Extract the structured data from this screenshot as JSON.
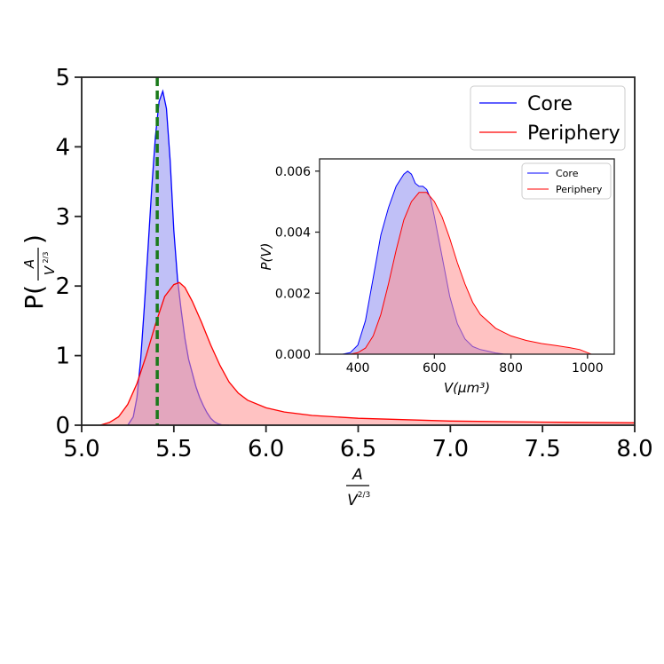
{
  "chart_data": [
    {
      "type": "area",
      "xlabel_num": "A",
      "xlabel_den": "V",
      "xlabel_exp": "2/3",
      "ylabel_prefix": "P(",
      "ylabel_suffix": ")",
      "xlim": [
        5.0,
        8.0
      ],
      "ylim": [
        0,
        5
      ],
      "x_ticks": [
        5.0,
        5.5,
        6.0,
        6.5,
        7.0,
        7.5,
        8.0
      ],
      "x_tick_labels": [
        "5.0",
        "5.5",
        "6.0",
        "6.5",
        "7.0",
        "7.5",
        "8.0"
      ],
      "y_ticks": [
        0,
        1,
        2,
        3,
        4,
        5
      ],
      "y_tick_labels": [
        "0",
        "1",
        "2",
        "3",
        "4",
        "5"
      ],
      "grid": false,
      "legend_position": "top-right",
      "reference_line": {
        "x": 5.41,
        "color": "#1a7a1a",
        "style": "dashed"
      },
      "series": [
        {
          "name": "Core",
          "color": "#0000ff",
          "fill": "#8c8cf0",
          "x": [
            5.25,
            5.28,
            5.3,
            5.32,
            5.34,
            5.36,
            5.38,
            5.4,
            5.42,
            5.44,
            5.46,
            5.48,
            5.5,
            5.52,
            5.54,
            5.56,
            5.58,
            5.6,
            5.62,
            5.64,
            5.66,
            5.68,
            5.7,
            5.72,
            5.74,
            5.76,
            5.8
          ],
          "y": [
            0.0,
            0.12,
            0.4,
            0.95,
            1.7,
            2.55,
            3.4,
            4.15,
            4.65,
            4.8,
            4.55,
            3.8,
            2.8,
            2.1,
            1.65,
            1.25,
            0.95,
            0.75,
            0.55,
            0.4,
            0.28,
            0.18,
            0.1,
            0.05,
            0.02,
            0.005,
            0.0
          ]
        },
        {
          "name": "Periphery",
          "color": "#ff0000",
          "fill": "#ff9090",
          "x": [
            5.1,
            5.15,
            5.2,
            5.25,
            5.3,
            5.35,
            5.4,
            5.45,
            5.5,
            5.53,
            5.56,
            5.6,
            5.65,
            5.7,
            5.75,
            5.8,
            5.85,
            5.9,
            6.0,
            6.1,
            6.25,
            6.5,
            7.0,
            7.5,
            8.0
          ],
          "y": [
            0.0,
            0.04,
            0.12,
            0.3,
            0.6,
            1.0,
            1.45,
            1.85,
            2.02,
            2.05,
            1.98,
            1.78,
            1.48,
            1.15,
            0.86,
            0.62,
            0.46,
            0.36,
            0.25,
            0.19,
            0.14,
            0.1,
            0.06,
            0.045,
            0.035
          ]
        }
      ]
    },
    {
      "type": "area",
      "xlabel": "V(μm³)",
      "ylabel": "P(V)",
      "xlim": [
        300,
        1070
      ],
      "ylim": [
        0,
        0.0064
      ],
      "x_ticks": [
        400,
        600,
        800,
        1000
      ],
      "x_tick_labels": [
        "400",
        "600",
        "800",
        "1000"
      ],
      "y_ticks": [
        0.0,
        0.002,
        0.004,
        0.006
      ],
      "y_tick_labels": [
        "0.000",
        "0.002",
        "0.004",
        "0.006"
      ],
      "grid": false,
      "legend_position": "top-right",
      "series": [
        {
          "name": "Core",
          "color": "#0000ff",
          "fill": "#8c8cf0",
          "x": [
            360,
            380,
            400,
            420,
            440,
            460,
            480,
            500,
            520,
            530,
            540,
            550,
            560,
            570,
            580,
            590,
            600,
            620,
            640,
            660,
            680,
            700,
            720,
            740,
            760,
            780,
            800
          ],
          "y": [
            0.0,
            5e-05,
            0.0003,
            0.0011,
            0.0025,
            0.0039,
            0.0048,
            0.0055,
            0.0059,
            0.006,
            0.0059,
            0.0056,
            0.0055,
            0.0055,
            0.0054,
            0.0051,
            0.0045,
            0.0032,
            0.0019,
            0.001,
            0.0005,
            0.00025,
            0.00015,
            0.0001,
            4e-05,
            1e-05,
            0.0
          ]
        },
        {
          "name": "Periphery",
          "color": "#ff0000",
          "fill": "#ff9090",
          "x": [
            380,
            400,
            420,
            440,
            460,
            480,
            500,
            520,
            540,
            560,
            580,
            600,
            620,
            640,
            660,
            680,
            700,
            720,
            760,
            800,
            840,
            880,
            920,
            950,
            980,
            1000,
            1010
          ],
          "y": [
            0.0,
            5e-05,
            0.0002,
            0.0006,
            0.0013,
            0.0023,
            0.0034,
            0.0044,
            0.005,
            0.0053,
            0.0053,
            0.005,
            0.0045,
            0.0038,
            0.003,
            0.0023,
            0.0017,
            0.0013,
            0.00085,
            0.0006,
            0.00045,
            0.00035,
            0.00028,
            0.00022,
            0.00015,
            5e-05,
            0.0
          ]
        }
      ]
    }
  ]
}
